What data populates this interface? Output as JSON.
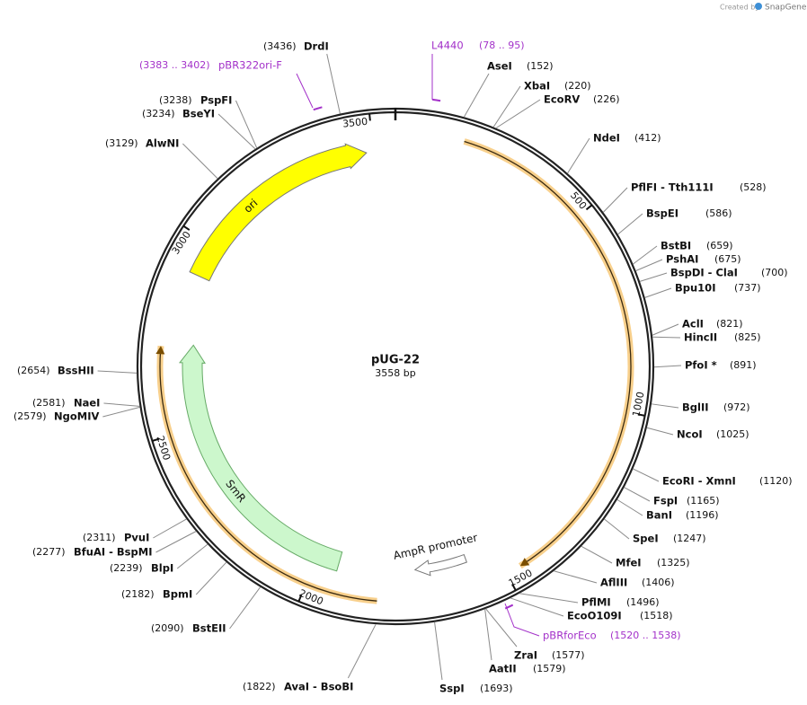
{
  "credit": {
    "prefix": "Created by",
    "brand": "SnapGene"
  },
  "plasmid": {
    "name": "pUG-22",
    "length": "3558 bp"
  },
  "ruler": [
    "500",
    "1000",
    "1500",
    "2000",
    "2500",
    "3000",
    "3500"
  ],
  "sites": [
    {
      "name": "AseI",
      "position": "(152)"
    },
    {
      "name": "XbaI",
      "position": "(220)"
    },
    {
      "name": "EcoRV",
      "position": "(226)"
    },
    {
      "name": "NdeI",
      "position": "(412)"
    },
    {
      "name": "PflFI  - Tth111I",
      "position": "(528)"
    },
    {
      "name": "BspEI",
      "position": "(586)"
    },
    {
      "name": "BstBI",
      "position": "(659)"
    },
    {
      "name": "PshAI",
      "position": "(675)"
    },
    {
      "name": "BspDI  - ClaI",
      "position": "(700)"
    },
    {
      "name": "Bpu10I",
      "position": "(737)"
    },
    {
      "name": "AclI",
      "position": "(821)"
    },
    {
      "name": "HincII",
      "position": "(825)"
    },
    {
      "name": "PfoI *",
      "position": "(891)"
    },
    {
      "name": "BglII",
      "position": "(972)"
    },
    {
      "name": "NcoI",
      "position": "(1025)"
    },
    {
      "name": "EcoRI  - XmnI",
      "position": "(1120)"
    },
    {
      "name": "FspI",
      "position": "(1165)"
    },
    {
      "name": "BanI",
      "position": "(1196)"
    },
    {
      "name": "SpeI",
      "position": "(1247)"
    },
    {
      "name": "MfeI",
      "position": "(1325)"
    },
    {
      "name": "AflIII",
      "position": "(1406)"
    },
    {
      "name": "PflMI",
      "position": "(1496)"
    },
    {
      "name": "EcoO109I",
      "position": "(1518)"
    },
    {
      "name": "ZraI",
      "position": "(1577)"
    },
    {
      "name": "AatII",
      "position": "(1579)"
    },
    {
      "name": "SspI",
      "position": "(1693)"
    },
    {
      "name": "AvaI  - BsoBI",
      "position": "(1822)"
    },
    {
      "name": "BstEII",
      "position": "(2090)"
    },
    {
      "name": "BpmI",
      "position": "(2182)"
    },
    {
      "name": "BlpI",
      "position": "(2239)"
    },
    {
      "name": "BfuAI  - BspMI",
      "position": "(2277)"
    },
    {
      "name": "PvuI",
      "position": "(2311)"
    },
    {
      "name": "NgoMIV",
      "position": "(2579)"
    },
    {
      "name": "NaeI",
      "position": "(2581)"
    },
    {
      "name": "BssHII",
      "position": "(2654)"
    },
    {
      "name": "AlwNI",
      "position": "(3129)"
    },
    {
      "name": "BseYI",
      "position": "(3234)"
    },
    {
      "name": "PspFI",
      "position": "(3238)"
    },
    {
      "name": "DrdI",
      "position": "(3436)"
    }
  ],
  "primers": [
    {
      "name": "L4440",
      "range": "(78 .. 95)"
    },
    {
      "name": "pBR322ori-F",
      "range": "(3383 .. 3402)"
    },
    {
      "name": "pBRforEco",
      "range": "(1520 .. 1538)"
    }
  ],
  "features": [
    {
      "name": "ori"
    },
    {
      "name": "SmR"
    },
    {
      "name": "AmpR promoter"
    }
  ]
}
